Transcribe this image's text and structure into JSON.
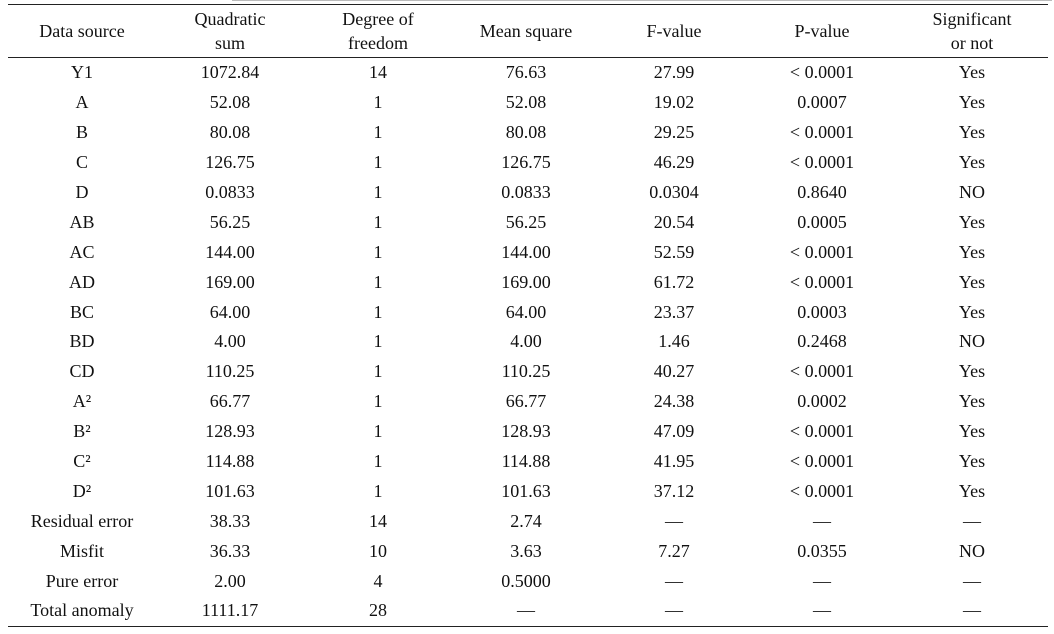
{
  "headers": [
    "Data source",
    "Quadratic sum",
    "Degree of freedom",
    "Mean square",
    "F-value",
    "P-value",
    "Significant or not"
  ],
  "header_lines": [
    [
      "Data source"
    ],
    [
      "Quadratic",
      "sum"
    ],
    [
      "Degree of",
      "freedom"
    ],
    [
      "Mean square"
    ],
    [
      "F-value"
    ],
    [
      "P-value"
    ],
    [
      "Significant",
      "or not"
    ]
  ],
  "rows": [
    [
      "Y1",
      "1072.84",
      "14",
      "76.63",
      "27.99",
      "< 0.0001",
      "Yes"
    ],
    [
      "A",
      "52.08",
      "1",
      "52.08",
      "19.02",
      "0.0007",
      "Yes"
    ],
    [
      "B",
      "80.08",
      "1",
      "80.08",
      "29.25",
      "< 0.0001",
      "Yes"
    ],
    [
      "C",
      "126.75",
      "1",
      "126.75",
      "46.29",
      "< 0.0001",
      "Yes"
    ],
    [
      "D",
      "0.0833",
      "1",
      "0.0833",
      "0.0304",
      "0.8640",
      "NO"
    ],
    [
      "AB",
      "56.25",
      "1",
      "56.25",
      "20.54",
      "0.0005",
      "Yes"
    ],
    [
      "AC",
      "144.00",
      "1",
      "144.00",
      "52.59",
      "< 0.0001",
      "Yes"
    ],
    [
      "AD",
      "169.00",
      "1",
      "169.00",
      "61.72",
      "< 0.0001",
      "Yes"
    ],
    [
      "BC",
      "64.00",
      "1",
      "64.00",
      "23.37",
      "0.0003",
      "Yes"
    ],
    [
      "BD",
      "4.00",
      "1",
      "4.00",
      "1.46",
      "0.2468",
      "NO"
    ],
    [
      "CD",
      "110.25",
      "1",
      "110.25",
      "40.27",
      "< 0.0001",
      "Yes"
    ],
    [
      "A²",
      "66.77",
      "1",
      "66.77",
      "24.38",
      "0.0002",
      "Yes"
    ],
    [
      "B²",
      "128.93",
      "1",
      "128.93",
      "47.09",
      "< 0.0001",
      "Yes"
    ],
    [
      "C²",
      "114.88",
      "1",
      "114.88",
      "41.95",
      "< 0.0001",
      "Yes"
    ],
    [
      "D²",
      "101.63",
      "1",
      "101.63",
      "37.12",
      "< 0.0001",
      "Yes"
    ],
    [
      "Residual error",
      "38.33",
      "14",
      "2.74",
      "—",
      "—",
      "—"
    ],
    [
      "Misfit",
      "36.33",
      "10",
      "3.63",
      "7.27",
      "0.0355",
      "NO"
    ],
    [
      "Pure error",
      "2.00",
      "4",
      "0.5000",
      "—",
      "—",
      "—"
    ],
    [
      "Total anomaly",
      "1111.17",
      "28",
      "—",
      "—",
      "—",
      "—"
    ]
  ]
}
